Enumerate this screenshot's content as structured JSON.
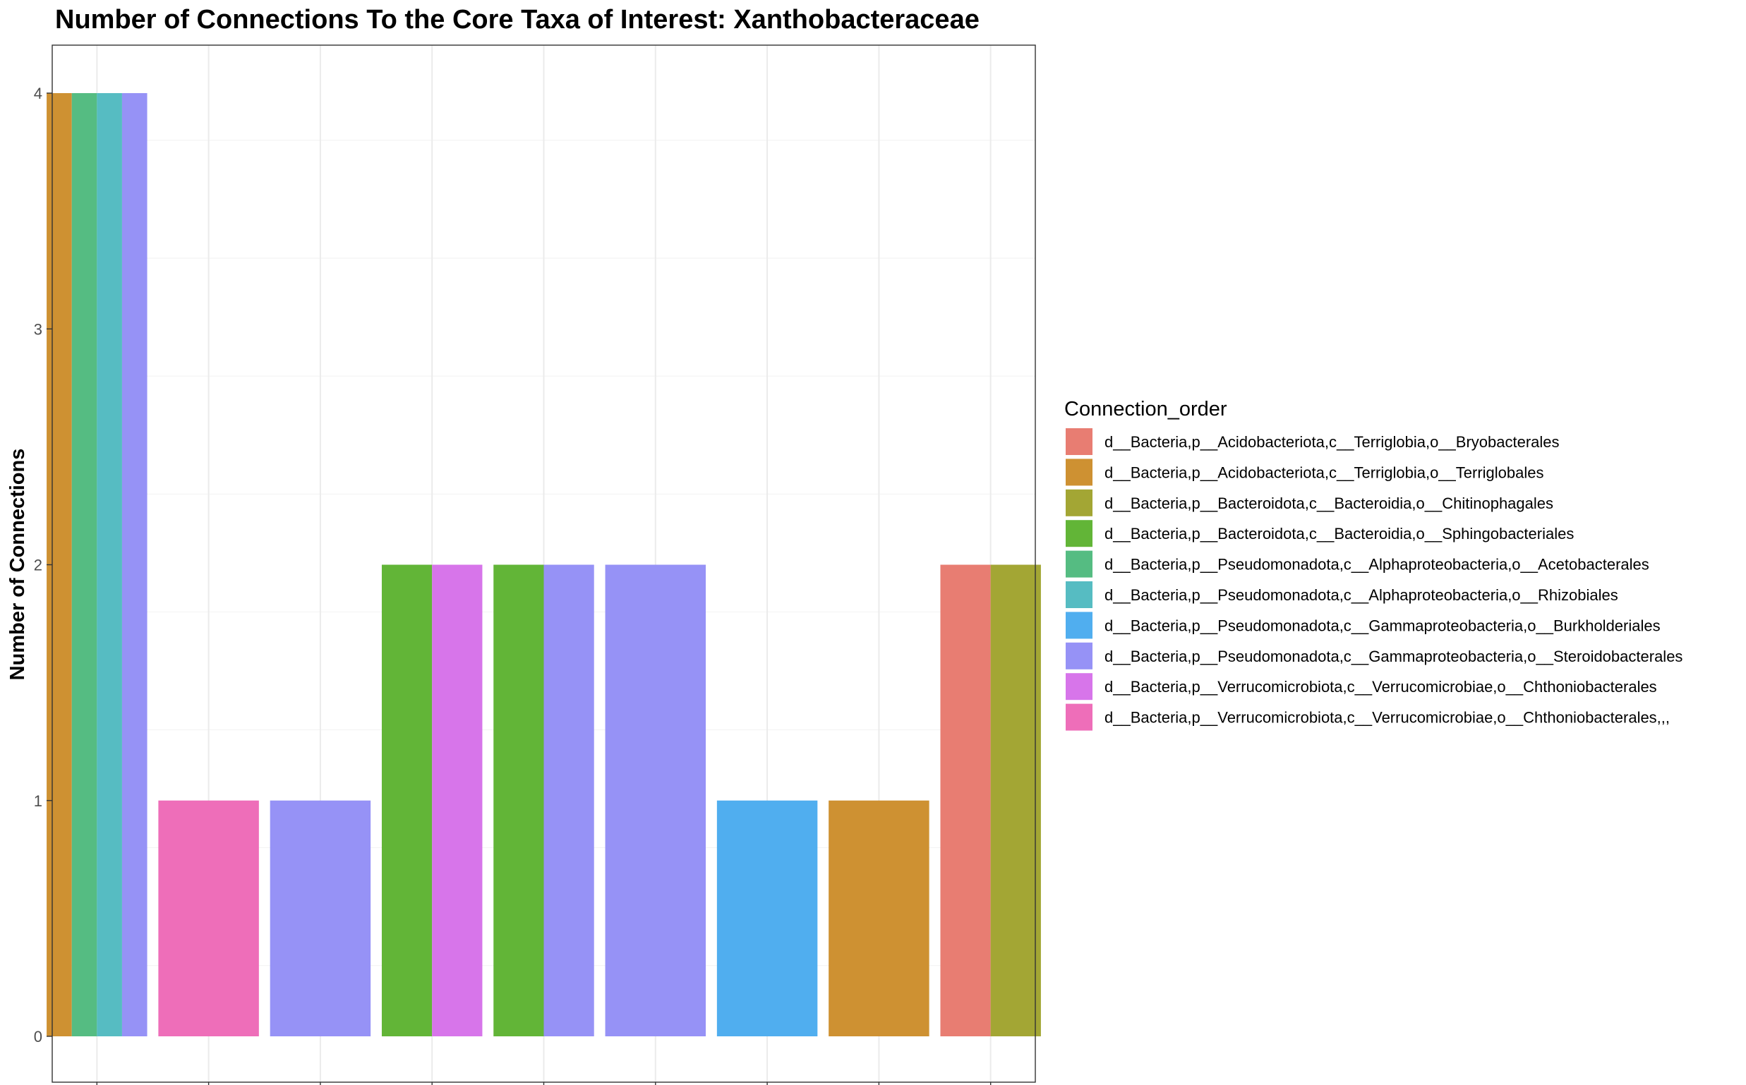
{
  "chart_data": {
    "type": "bar",
    "title": "Number of Connections To the Core Taxa of Interest: Xanthobacteraceae",
    "xlabel": "",
    "ylabel": "Number of Connections",
    "ylim": [
      -0.2,
      4.2
    ],
    "yticks": [
      0,
      1,
      2,
      3,
      4
    ],
    "grid": true,
    "legend_title": "Connection_order",
    "legend_position": "right",
    "series": [
      {
        "name": "d__Bacteria,p__Acidobacteriota,c__Terriglobia,o__Bryobacterales",
        "color": "#E87D72"
      },
      {
        "name": "d__Bacteria,p__Acidobacteriota,c__Terriglobia,o__Terriglobales",
        "color": "#CE9132"
      },
      {
        "name": "d__Bacteria,p__Bacteroidota,c__Bacteroidia,o__Chitinophagales",
        "color": "#A3A634"
      },
      {
        "name": "d__Bacteria,p__Bacteroidota,c__Bacteroidia,o__Sphingobacteriales",
        "color": "#62B537"
      },
      {
        "name": "d__Bacteria,p__Pseudomonadota,c__Alphaproteobacteria,o__Acetobacterales",
        "color": "#55BC82"
      },
      {
        "name": "d__Bacteria,p__Pseudomonadota,c__Alphaproteobacteria,o__Rhizobiales",
        "color": "#56BCC2"
      },
      {
        "name": "d__Bacteria,p__Pseudomonadota,c__Gammaproteobacteria,o__Burkholderiales",
        "color": "#50AEEF"
      },
      {
        "name": "d__Bacteria,p__Pseudomonadota,c__Gammaproteobacteria,o__Steroidobacterales",
        "color": "#9692F6"
      },
      {
        "name": "d__Bacteria,p__Verrucomicrobiota,c__Verrucomicrobiae,o__Chthoniobacterales",
        "color": "#D775EA"
      },
      {
        "name": "d__Bacteria,p__Verrucomicrobiota,c__Verrucomicrobiae,o__Chthoniobacterales,,,",
        "color": "#EE6EB9"
      }
    ],
    "groups": [
      {
        "bars": [
          {
            "series": 1,
            "value": 4
          },
          {
            "series": 4,
            "value": 4
          },
          {
            "series": 5,
            "value": 4
          },
          {
            "series": 7,
            "value": 4
          }
        ]
      },
      {
        "bars": [
          {
            "series": 9,
            "value": 1
          }
        ]
      },
      {
        "bars": [
          {
            "series": 7,
            "value": 1
          }
        ]
      },
      {
        "bars": [
          {
            "series": 3,
            "value": 2
          },
          {
            "series": 8,
            "value": 2
          }
        ]
      },
      {
        "bars": [
          {
            "series": 3,
            "value": 2
          },
          {
            "series": 7,
            "value": 2
          }
        ]
      },
      {
        "bars": [
          {
            "series": 7,
            "value": 2
          }
        ]
      },
      {
        "bars": [
          {
            "series": 6,
            "value": 1
          }
        ]
      },
      {
        "bars": [
          {
            "series": 1,
            "value": 1
          }
        ]
      },
      {
        "bars": [
          {
            "series": 0,
            "value": 2
          },
          {
            "series": 2,
            "value": 2
          }
        ]
      }
    ]
  }
}
